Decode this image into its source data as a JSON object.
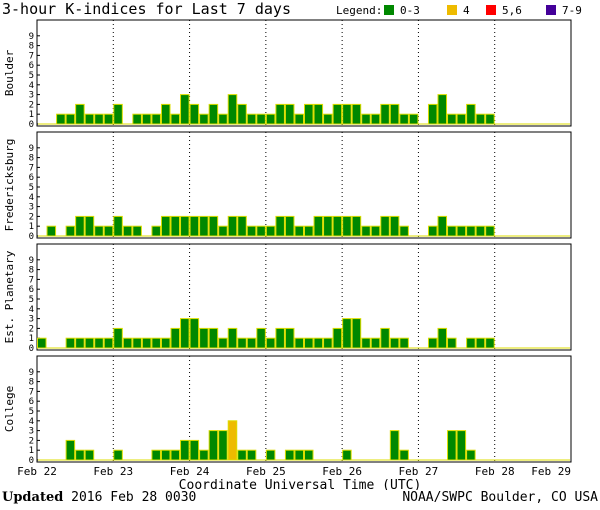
{
  "chart_data": {
    "type": "bar",
    "title": "3-hour K-indices for Last 7 days",
    "legend": {
      "label": "Legend:",
      "entries": [
        {
          "label": "0-3",
          "color": "#008800"
        },
        {
          "label": "4",
          "color": "#eebb00"
        },
        {
          "label": "5,6",
          "color": "#ff0000"
        },
        {
          "label": "7-9",
          "color": "#440099"
        }
      ]
    },
    "xlabel": "Coordinate Universal Time (UTC)",
    "x_ticks": [
      "Feb 22",
      "Feb 23",
      "Feb 24",
      "Feb 25",
      "Feb 26",
      "Feb 27",
      "Feb 28",
      "Feb 29"
    ],
    "y_ticks": [
      "0",
      "1",
      "2",
      "3",
      "4",
      "5",
      "6",
      "7",
      "8",
      "9"
    ],
    "ylim": [
      0,
      9
    ],
    "bar_fill": "#008800",
    "bar_outline": "#dddd00",
    "panels": [
      {
        "name": "Boulder",
        "values": [
          0,
          0,
          1,
          1,
          2,
          1,
          1,
          1,
          2,
          0,
          1,
          1,
          1,
          2,
          1,
          3,
          2,
          1,
          2,
          1,
          3,
          2,
          1,
          1,
          1,
          2,
          2,
          1,
          2,
          2,
          1,
          2,
          2,
          2,
          1,
          1,
          2,
          2,
          1,
          1,
          0,
          2,
          3,
          1,
          1,
          2,
          1,
          1
        ]
      },
      {
        "name": "Fredericksburg",
        "values": [
          0,
          1,
          0,
          1,
          2,
          2,
          1,
          1,
          2,
          1,
          1,
          0,
          1,
          2,
          2,
          2,
          2,
          2,
          2,
          1,
          2,
          2,
          1,
          1,
          1,
          2,
          2,
          1,
          1,
          2,
          2,
          2,
          2,
          2,
          1,
          1,
          2,
          2,
          1,
          0,
          0,
          1,
          2,
          1,
          1,
          1,
          1,
          1
        ]
      },
      {
        "name": "Est. Planetary",
        "values": [
          1,
          0,
          0,
          1,
          1,
          1,
          1,
          1,
          2,
          1,
          1,
          1,
          1,
          1,
          2,
          3,
          3,
          2,
          2,
          1,
          2,
          1,
          1,
          2,
          1,
          2,
          2,
          1,
          1,
          1,
          1,
          2,
          3,
          3,
          1,
          1,
          2,
          1,
          1,
          0,
          0,
          1,
          2,
          1,
          0,
          1,
          1,
          1
        ]
      },
      {
        "name": "College",
        "values": [
          0,
          0,
          0,
          2,
          1,
          1,
          0,
          0,
          1,
          0,
          0,
          0,
          1,
          1,
          1,
          2,
          2,
          1,
          3,
          3,
          4,
          1,
          1,
          0,
          1,
          0,
          1,
          1,
          1,
          0,
          0,
          0,
          1,
          0,
          0,
          0,
          0,
          3,
          1,
          0,
          0,
          0,
          0,
          3,
          3,
          1,
          0,
          0
        ]
      }
    ]
  },
  "footer": {
    "updated_label": "Updated",
    "updated_value": "2016 Feb 28 0030",
    "credit": "NOAA/SWPC Boulder, CO USA"
  }
}
